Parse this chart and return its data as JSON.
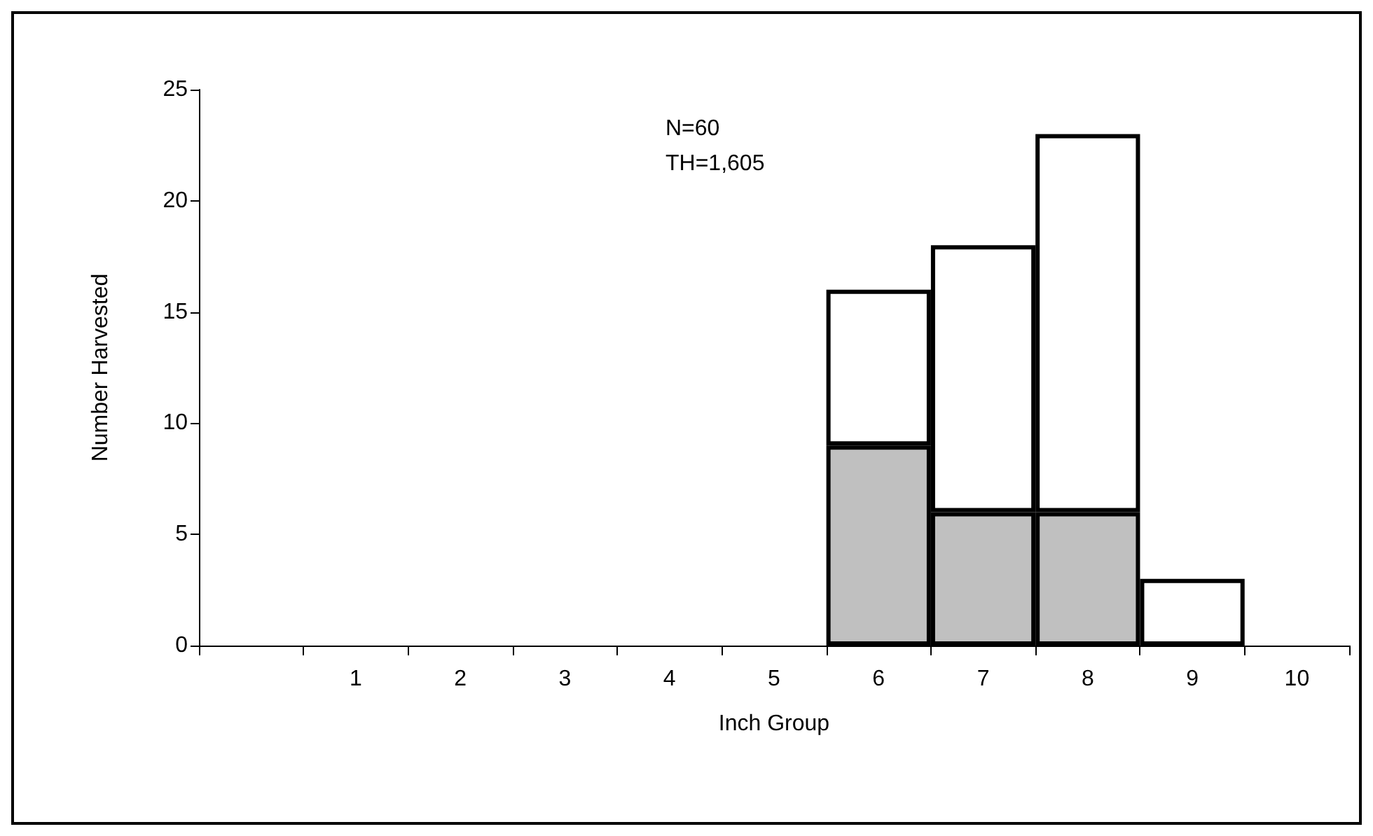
{
  "chart_data": {
    "type": "bar",
    "stacked": true,
    "xlabel": "Inch Group",
    "ylabel": "Number Harvested",
    "categories": [
      null,
      "1",
      "2",
      "3",
      "4",
      "5",
      "6",
      "7",
      "8",
      "9",
      "10"
    ],
    "series": [
      {
        "color": "#c0c0c0",
        "values": [
          null,
          null,
          null,
          null,
          null,
          null,
          9,
          6,
          6,
          null,
          null
        ]
      },
      {
        "color": "#ffffff",
        "values": [
          null,
          null,
          null,
          null,
          null,
          null,
          7,
          12,
          17,
          3,
          null
        ]
      }
    ],
    "ylim": [
      0,
      25
    ],
    "yticks": [
      0,
      5,
      10,
      15,
      20,
      25
    ],
    "annotations": [
      "N=60",
      "TH=1,605"
    ]
  }
}
